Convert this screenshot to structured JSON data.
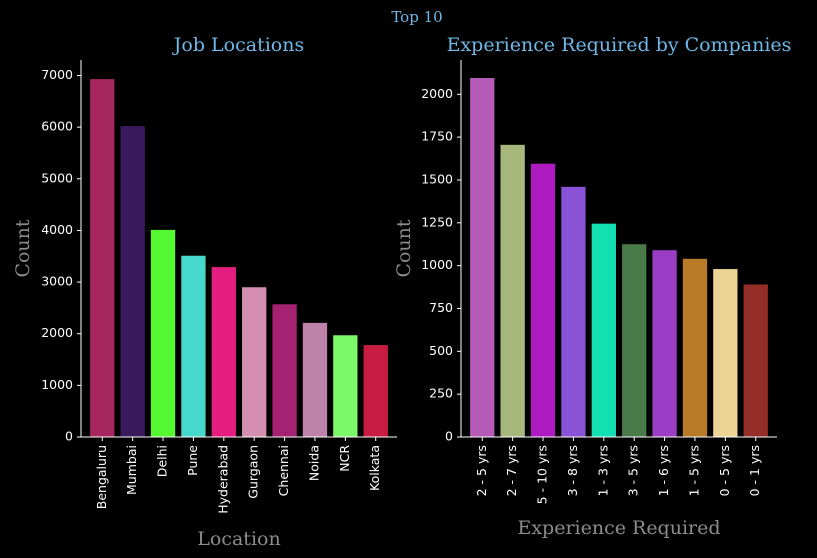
{
  "suptitle": "Top 10",
  "chart_data": [
    {
      "type": "bar",
      "title": "Job Locations",
      "xlabel": "Location",
      "ylabel": "Count",
      "ylim": [
        0,
        7300
      ],
      "yticks": [
        0,
        1000,
        2000,
        3000,
        4000,
        5000,
        6000,
        7000
      ],
      "categories": [
        "Bengaluru",
        "Mumbai",
        "Delhi",
        "Pune",
        "Hyderabad",
        "Gurgaon",
        "Chennai",
        "Noida",
        "NCR",
        "Kolkata"
      ],
      "values": [
        6930,
        6020,
        4010,
        3510,
        3290,
        2900,
        2570,
        2210,
        1970,
        1780
      ],
      "colors": [
        "#a5275e",
        "#3a1a5c",
        "#55f932",
        "#47d8cc",
        "#e41e7e",
        "#d48fb0",
        "#a52171",
        "#bf83ab",
        "#7cf96b",
        "#c81c42"
      ]
    },
    {
      "type": "bar",
      "title": "Experience Required by Companies",
      "xlabel": "Experience Required",
      "ylabel": "Count",
      "ylim": [
        0,
        2200
      ],
      "yticks": [
        0,
        250,
        500,
        750,
        1000,
        1250,
        1500,
        1750,
        2000
      ],
      "categories": [
        "2 - 5 yrs",
        "2 - 7 yrs",
        "5 - 10 yrs",
        "3 - 8 yrs",
        "1 - 3 yrs",
        "3 - 5 yrs",
        "1 - 6 yrs",
        "1 - 5 yrs",
        "0 - 5 yrs",
        "0 - 1 yrs"
      ],
      "values": [
        2095,
        1705,
        1595,
        1460,
        1245,
        1125,
        1090,
        1040,
        980,
        890
      ],
      "colors": [
        "#b55ab6",
        "#a8b87c",
        "#ad1ac0",
        "#8a52d7",
        "#13e0b2",
        "#4a7a49",
        "#9b3ec5",
        "#b97b27",
        "#ecd594",
        "#952e29"
      ]
    }
  ]
}
